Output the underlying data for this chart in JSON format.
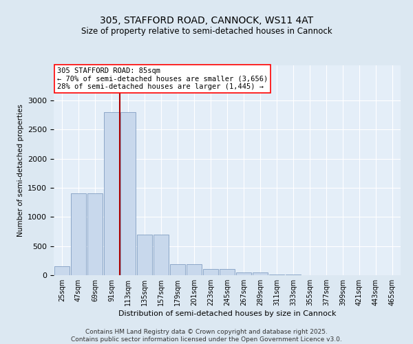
{
  "title_line1": "305, STAFFORD ROAD, CANNOCK, WS11 4AT",
  "title_line2": "Size of property relative to semi-detached houses in Cannock",
  "xlabel": "Distribution of semi-detached houses by size in Cannock",
  "ylabel": "Number of semi-detached properties",
  "categories": [
    "25sqm",
    "47sqm",
    "69sqm",
    "91sqm",
    "113sqm",
    "135sqm",
    "157sqm",
    "179sqm",
    "201sqm",
    "223sqm",
    "245sqm",
    "267sqm",
    "289sqm",
    "311sqm",
    "333sqm",
    "355sqm",
    "377sqm",
    "399sqm",
    "421sqm",
    "443sqm",
    "465sqm"
  ],
  "values": [
    150,
    1400,
    1400,
    2800,
    2800,
    700,
    700,
    190,
    190,
    110,
    110,
    50,
    50,
    10,
    10,
    0,
    0,
    0,
    0,
    0,
    0
  ],
  "bar_color": "#c8d8ec",
  "bar_edge_color": "#7090b8",
  "vline_color": "#aa0000",
  "vline_position": 3.5,
  "annotation_text": "305 STAFFORD ROAD: 85sqm\n← 70% of semi-detached houses are smaller (3,656)\n28% of semi-detached houses are larger (1,445) →",
  "ylim": [
    0,
    3600
  ],
  "yticks": [
    0,
    500,
    1000,
    1500,
    2000,
    2500,
    3000
  ],
  "footer": "Contains HM Land Registry data © Crown copyright and database right 2025.\nContains public sector information licensed under the Open Government Licence v3.0.",
  "background_color": "#dce8f2",
  "plot_bg_color": "#e4eef8"
}
